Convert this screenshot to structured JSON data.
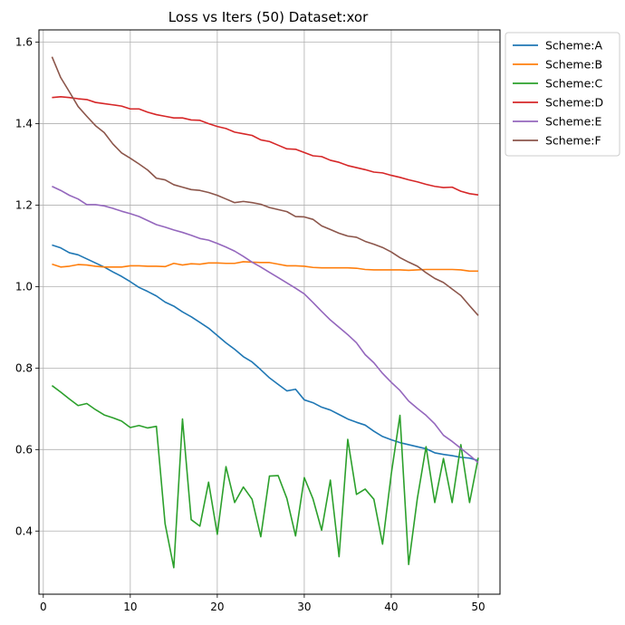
{
  "chart_data": {
    "type": "line",
    "title": "Loss vs Iters (50) Dataset:xor",
    "xlabel": "",
    "ylabel": "",
    "xlim": [
      -0.5,
      52.5
    ],
    "ylim": [
      0.245,
      1.63
    ],
    "xticks": [
      0,
      10,
      20,
      30,
      40,
      50
    ],
    "yticks": [
      0.4,
      0.6,
      0.8,
      1.0,
      1.2,
      1.4,
      1.6
    ],
    "ytick_labels": [
      "0.4",
      "0.6",
      "0.8",
      "1.0",
      "1.2",
      "1.4",
      "1.6"
    ],
    "grid": true,
    "legend_position": "outside-top-right",
    "x": [
      1,
      2,
      3,
      4,
      5,
      6,
      7,
      8,
      9,
      10,
      11,
      12,
      13,
      14,
      15,
      16,
      17,
      18,
      19,
      20,
      21,
      22,
      23,
      24,
      25,
      26,
      27,
      28,
      29,
      30,
      31,
      32,
      33,
      34,
      35,
      36,
      37,
      38,
      39,
      40,
      41,
      42,
      43,
      44,
      45,
      46,
      47,
      48,
      49,
      50
    ],
    "series": [
      {
        "name": "Scheme:A",
        "color": "#1f77b4",
        "values": [
          1.102,
          1.095,
          1.083,
          1.078,
          1.068,
          1.058,
          1.048,
          1.036,
          1.025,
          1.012,
          0.998,
          0.988,
          0.977,
          0.962,
          0.952,
          0.938,
          0.926,
          0.912,
          0.898,
          0.88,
          0.862,
          0.846,
          0.828,
          0.815,
          0.796,
          0.776,
          0.76,
          0.744,
          0.748,
          0.722,
          0.715,
          0.704,
          0.697,
          0.686,
          0.675,
          0.667,
          0.66,
          0.645,
          0.632,
          0.624,
          0.617,
          0.612,
          0.607,
          0.602,
          0.592,
          0.588,
          0.585,
          0.581,
          0.579,
          0.573
        ]
      },
      {
        "name": "Scheme:B",
        "color": "#ff7f0e",
        "values": [
          1.055,
          1.048,
          1.05,
          1.054,
          1.053,
          1.05,
          1.048,
          1.048,
          1.048,
          1.051,
          1.051,
          1.05,
          1.05,
          1.049,
          1.057,
          1.053,
          1.056,
          1.055,
          1.058,
          1.058,
          1.057,
          1.057,
          1.061,
          1.06,
          1.059,
          1.059,
          1.055,
          1.051,
          1.051,
          1.05,
          1.047,
          1.046,
          1.046,
          1.046,
          1.046,
          1.045,
          1.042,
          1.041,
          1.041,
          1.041,
          1.041,
          1.04,
          1.041,
          1.042,
          1.042,
          1.042,
          1.042,
          1.041,
          1.038,
          1.038
        ]
      },
      {
        "name": "Scheme:C",
        "color": "#2ca02c",
        "values": [
          0.757,
          0.741,
          0.724,
          0.708,
          0.713,
          0.698,
          0.685,
          0.678,
          0.67,
          0.654,
          0.659,
          0.653,
          0.657,
          0.418,
          0.31,
          0.675,
          0.428,
          0.412,
          0.52,
          0.392,
          0.558,
          0.47,
          0.508,
          0.478,
          0.386,
          0.535,
          0.536,
          0.48,
          0.388,
          0.531,
          0.479,
          0.402,
          0.525,
          0.337,
          0.625,
          0.49,
          0.503,
          0.478,
          0.368,
          0.54,
          0.684,
          0.318,
          0.48,
          0.607,
          0.47,
          0.578,
          0.47,
          0.612,
          0.47,
          0.58
        ]
      },
      {
        "name": "Scheme:D",
        "color": "#d62728",
        "values": [
          1.464,
          1.466,
          1.464,
          1.461,
          1.459,
          1.452,
          1.449,
          1.446,
          1.443,
          1.436,
          1.436,
          1.428,
          1.422,
          1.418,
          1.414,
          1.414,
          1.409,
          1.408,
          1.4,
          1.393,
          1.388,
          1.379,
          1.375,
          1.371,
          1.36,
          1.356,
          1.347,
          1.338,
          1.337,
          1.329,
          1.321,
          1.319,
          1.31,
          1.305,
          1.297,
          1.292,
          1.287,
          1.281,
          1.279,
          1.273,
          1.268,
          1.262,
          1.257,
          1.251,
          1.246,
          1.243,
          1.244,
          1.234,
          1.228,
          1.225
        ]
      },
      {
        "name": "Scheme:E",
        "color": "#9467bd",
        "values": [
          1.246,
          1.236,
          1.224,
          1.215,
          1.201,
          1.201,
          1.198,
          1.192,
          1.185,
          1.179,
          1.172,
          1.162,
          1.152,
          1.146,
          1.139,
          1.133,
          1.126,
          1.118,
          1.114,
          1.106,
          1.097,
          1.087,
          1.074,
          1.06,
          1.048,
          1.035,
          1.022,
          1.009,
          0.996,
          0.982,
          0.961,
          0.939,
          0.918,
          0.9,
          0.882,
          0.862,
          0.833,
          0.813,
          0.787,
          0.765,
          0.745,
          0.719,
          0.701,
          0.684,
          0.663,
          0.635,
          0.62,
          0.603,
          0.586,
          0.568
        ]
      },
      {
        "name": "Scheme:F",
        "color": "#8c564b",
        "values": [
          1.564,
          1.513,
          1.478,
          1.442,
          1.418,
          1.395,
          1.378,
          1.35,
          1.328,
          1.315,
          1.301,
          1.286,
          1.266,
          1.262,
          1.25,
          1.244,
          1.238,
          1.236,
          1.231,
          1.224,
          1.215,
          1.206,
          1.209,
          1.206,
          1.202,
          1.194,
          1.189,
          1.184,
          1.172,
          1.171,
          1.165,
          1.149,
          1.14,
          1.131,
          1.124,
          1.121,
          1.111,
          1.104,
          1.096,
          1.085,
          1.071,
          1.06,
          1.05,
          1.034,
          1.02,
          1.01,
          0.994,
          0.978,
          0.953,
          0.929
        ]
      }
    ]
  }
}
